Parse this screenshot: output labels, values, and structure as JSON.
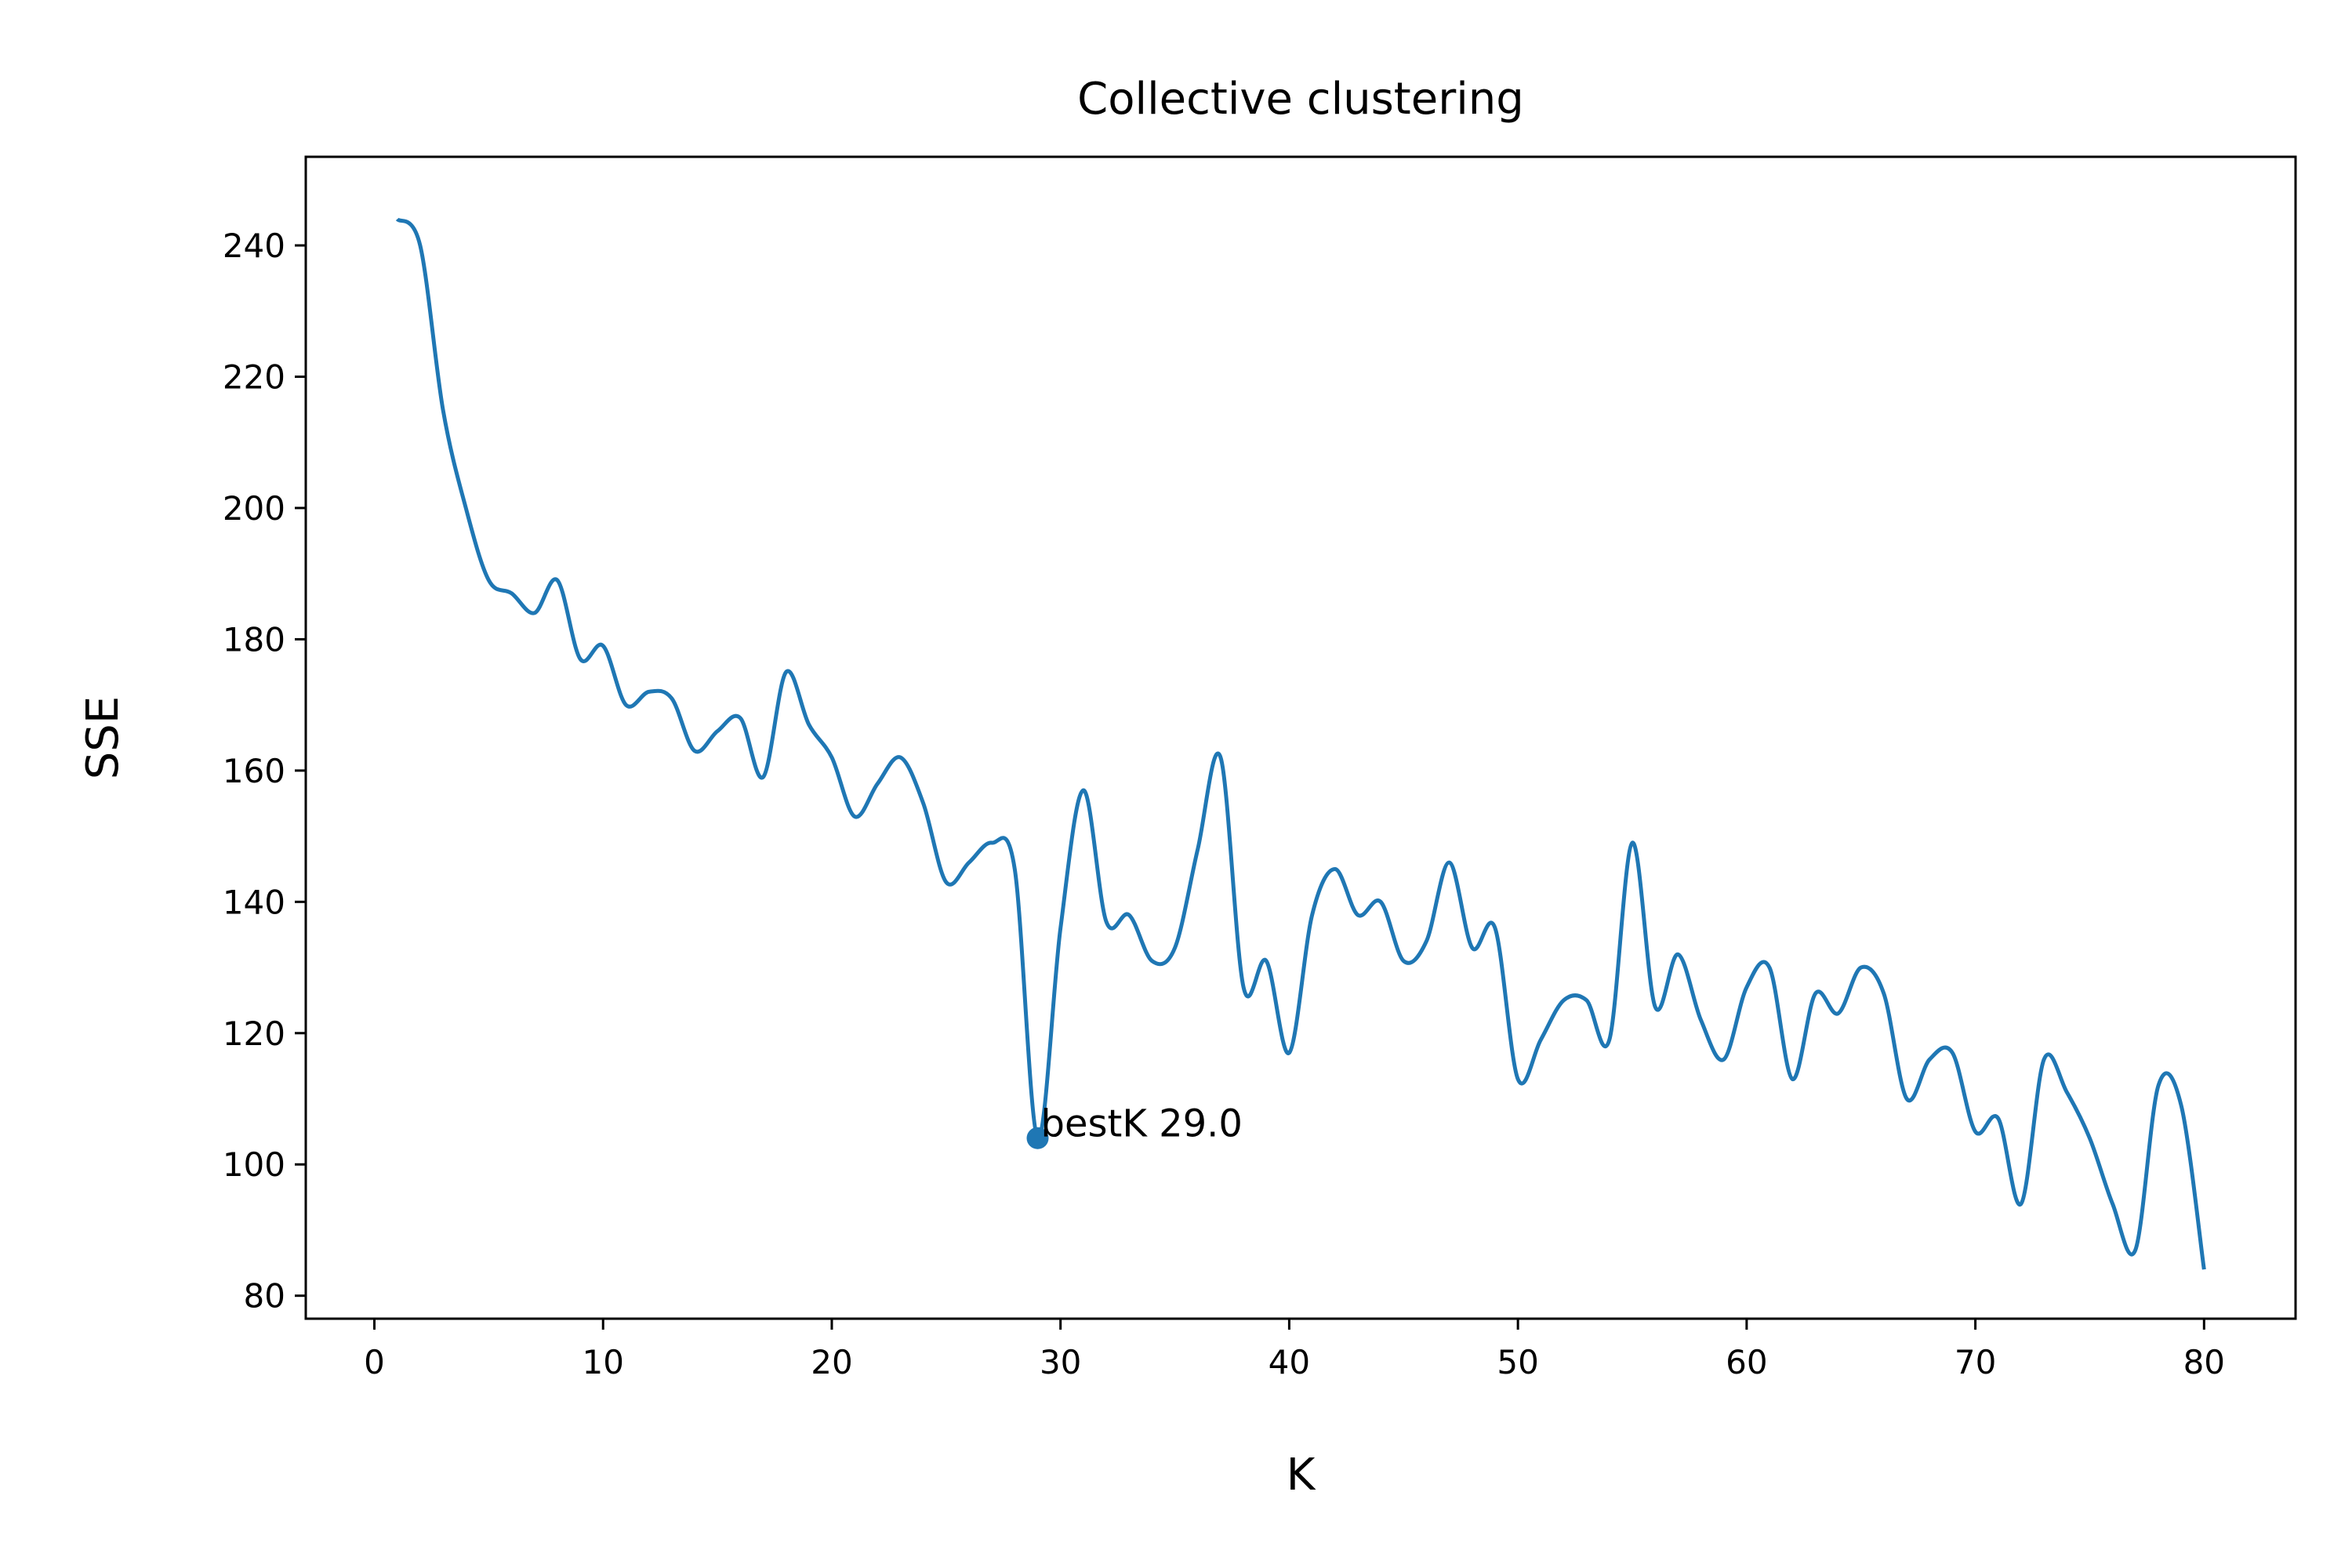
{
  "chart_data": {
    "type": "line",
    "title": "Collective clustering",
    "xlabel": "K",
    "ylabel": "SSE",
    "xlim": [
      -3,
      84
    ],
    "ylim": [
      76.5,
      253.5
    ],
    "grid": false,
    "xticks": [
      0,
      10,
      20,
      30,
      40,
      50,
      60,
      70,
      80
    ],
    "yticks": [
      80,
      100,
      120,
      140,
      160,
      180,
      200,
      220,
      240
    ],
    "series": [
      {
        "color": "#1f77b4",
        "x": [
          1,
          2,
          3,
          4,
          5,
          6,
          7,
          8,
          9,
          10,
          11,
          12,
          13,
          14,
          15,
          16,
          17,
          18,
          19,
          20,
          21,
          22,
          23,
          24,
          25,
          26,
          27,
          28,
          29,
          30,
          31,
          32,
          33,
          34,
          35,
          36,
          37,
          38,
          39,
          40,
          41,
          42,
          43,
          44,
          45,
          46,
          47,
          48,
          49,
          50,
          51,
          52,
          53,
          54,
          55,
          56,
          57,
          58,
          59,
          60,
          61,
          62,
          63,
          64,
          65,
          66,
          67,
          68,
          69,
          70,
          71,
          72,
          73,
          74,
          75,
          76,
          77,
          78,
          79,
          80
        ],
        "y": [
          244,
          240,
          215,
          200,
          189,
          187,
          184,
          189,
          177,
          179,
          170,
          172,
          171,
          163,
          166,
          168,
          159,
          175,
          167,
          162,
          153,
          158,
          162,
          155,
          143,
          146,
          149,
          145,
          104,
          136,
          157,
          137,
          138,
          131,
          133,
          148,
          162,
          127,
          131,
          117,
          138,
          145,
          138,
          140,
          131,
          134,
          146,
          133,
          136,
          113,
          119,
          125,
          125,
          119,
          149,
          124,
          132,
          122,
          116,
          127,
          130,
          113,
          126,
          123,
          130,
          126,
          110,
          116,
          117,
          105,
          107,
          94,
          116,
          111,
          104,
          94,
          87,
          112,
          109,
          84
        ]
      }
    ],
    "annotations": [
      {
        "x": 29,
        "y": 104,
        "text": "bestK 29.0"
      }
    ]
  }
}
